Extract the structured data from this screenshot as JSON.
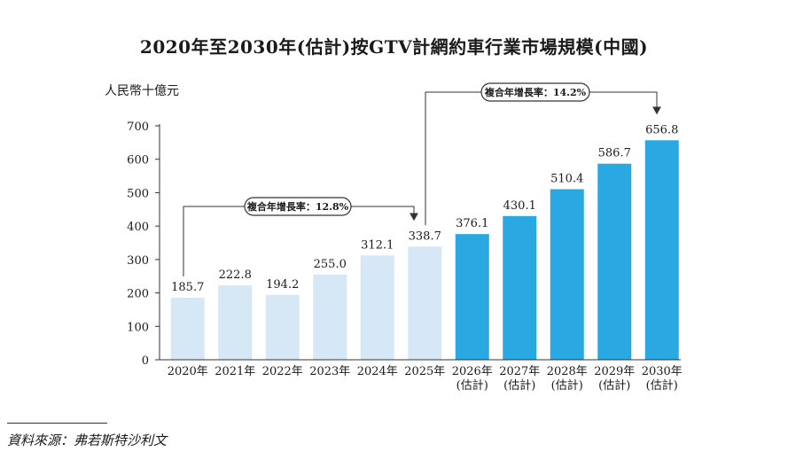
{
  "title": "2020年至2030年(估計)按GTV計網約車行業市場規模(中國)",
  "source": "資料來源：弗若斯特沙利文",
  "colors": {
    "historical": "#d6e7f6",
    "forecast": "#2aa8e2",
    "axis": "#333333",
    "text": "#1a1a1a"
  },
  "chart_data": {
    "type": "bar",
    "ylabel": "人民幣十億元",
    "ylim": [
      0,
      700
    ],
    "yticks": [
      0,
      100,
      200,
      300,
      400,
      500,
      600,
      700
    ],
    "grid": false,
    "categories": [
      "2020年",
      "2021年",
      "2022年",
      "2023年",
      "2024年",
      "2025年",
      "2026年(估計)",
      "2027年(估計)",
      "2028年(估計)",
      "2029年(估計)",
      "2030年(估計)"
    ],
    "category_lines": [
      [
        "2020年"
      ],
      [
        "2021年"
      ],
      [
        "2022年"
      ],
      [
        "2023年"
      ],
      [
        "2024年"
      ],
      [
        "2025年"
      ],
      [
        "2026年",
        "(估計)"
      ],
      [
        "2027年",
        "(估計)"
      ],
      [
        "2028年",
        "(估計)"
      ],
      [
        "2029年",
        "(估計)"
      ],
      [
        "2030年",
        "(估計)"
      ]
    ],
    "values": [
      185.7,
      222.8,
      194.2,
      255.0,
      312.1,
      338.7,
      376.1,
      430.1,
      510.4,
      586.7,
      656.8
    ],
    "value_labels": [
      "185.7",
      "222.8",
      "194.2",
      "255.0",
      "312.1",
      "338.7",
      "376.1",
      "430.1",
      "510.4",
      "586.7",
      "656.8"
    ],
    "forecast_from_index": 6,
    "annotations": [
      {
        "text": "複合年增長率：12.8%",
        "from_index": 0,
        "to_index": 5
      },
      {
        "text": "複合年增長率：14.2%",
        "from_index": 5,
        "to_index": 10
      }
    ]
  }
}
